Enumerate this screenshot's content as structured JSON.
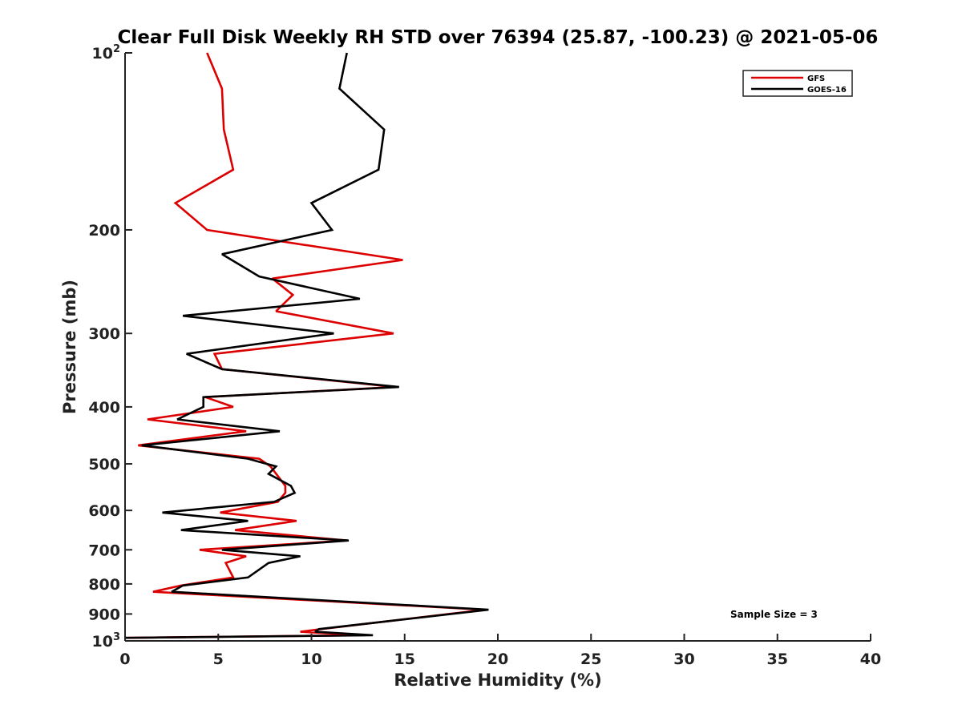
{
  "chart_data": {
    "type": "line",
    "title": "Clear Full Disk Weekly RH STD over 76394 (25.87, -100.23) @ 2021-05-06",
    "xlabel": "Relative Humidity (%)",
    "ylabel": "Pressure (mb)",
    "xlim": [
      0,
      40
    ],
    "ylim": [
      100,
      1000
    ],
    "y_scale": "log",
    "y_reversed": true,
    "x_ticks": [
      0,
      5,
      10,
      15,
      20,
      25,
      30,
      35,
      40
    ],
    "y_ticks": [
      {
        "value": 100,
        "label": "10",
        "sup": "2"
      },
      {
        "value": 200,
        "label": "200",
        "sup": ""
      },
      {
        "value": 300,
        "label": "300",
        "sup": ""
      },
      {
        "value": 400,
        "label": "400",
        "sup": ""
      },
      {
        "value": 500,
        "label": "500",
        "sup": ""
      },
      {
        "value": 600,
        "label": "600",
        "sup": ""
      },
      {
        "value": 700,
        "label": "700",
        "sup": ""
      },
      {
        "value": 800,
        "label": "800",
        "sup": ""
      },
      {
        "value": 900,
        "label": "900",
        "sup": ""
      },
      {
        "value": 1000,
        "label": "10",
        "sup": "3"
      }
    ],
    "grid": false,
    "legend_position": "top-right",
    "annotation": "Sample Size = 3",
    "series": [
      {
        "name": "GFS",
        "color": "#dd0000",
        "points": [
          [
            4.4,
            100
          ],
          [
            5.2,
            115
          ],
          [
            5.3,
            135
          ],
          [
            5.8,
            158
          ],
          [
            2.7,
            180
          ],
          [
            4.4,
            200
          ],
          [
            14.9,
            225
          ],
          [
            7.9,
            242
          ],
          [
            9.0,
            258
          ],
          [
            8.1,
            275
          ],
          [
            14.4,
            300
          ],
          [
            4.8,
            325
          ],
          [
            5.2,
            345
          ],
          [
            14.5,
            370
          ],
          [
            4.3,
            385
          ],
          [
            5.8,
            400
          ],
          [
            1.2,
            420
          ],
          [
            6.5,
            440
          ],
          [
            0.7,
            465
          ],
          [
            7.2,
            490
          ],
          [
            7.8,
            505
          ],
          [
            8.6,
            545
          ],
          [
            8.6,
            560
          ],
          [
            8.2,
            580
          ],
          [
            5.1,
            605
          ],
          [
            9.2,
            625
          ],
          [
            5.9,
            648
          ],
          [
            11.9,
            675
          ],
          [
            4.0,
            700
          ],
          [
            6.5,
            718
          ],
          [
            5.4,
            737
          ],
          [
            5.8,
            780
          ],
          [
            3.0,
            805
          ],
          [
            1.5,
            825
          ],
          [
            19.3,
            885
          ],
          [
            10.5,
            955
          ],
          [
            9.4,
            965
          ],
          [
            12.8,
            978
          ],
          [
            0.0,
            988
          ]
        ]
      },
      {
        "name": "GOES-16",
        "color": "#000000",
        "points": [
          [
            11.9,
            100
          ],
          [
            11.5,
            115
          ],
          [
            13.9,
            135
          ],
          [
            13.6,
            158
          ],
          [
            10.0,
            180
          ],
          [
            11.1,
            200
          ],
          [
            5.2,
            220
          ],
          [
            7.2,
            240
          ],
          [
            12.6,
            262
          ],
          [
            3.1,
            280
          ],
          [
            11.2,
            300
          ],
          [
            3.3,
            325
          ],
          [
            5.2,
            345
          ],
          [
            14.7,
            370
          ],
          [
            4.2,
            385
          ],
          [
            4.2,
            400
          ],
          [
            2.8,
            420
          ],
          [
            8.3,
            440
          ],
          [
            0.9,
            465
          ],
          [
            6.6,
            490
          ],
          [
            8.1,
            505
          ],
          [
            7.7,
            520
          ],
          [
            8.9,
            545
          ],
          [
            9.1,
            560
          ],
          [
            8.0,
            580
          ],
          [
            2.0,
            605
          ],
          [
            6.6,
            625
          ],
          [
            3.0,
            648
          ],
          [
            12.0,
            675
          ],
          [
            5.2,
            700
          ],
          [
            9.4,
            718
          ],
          [
            7.7,
            737
          ],
          [
            6.6,
            780
          ],
          [
            3.1,
            805
          ],
          [
            2.5,
            825
          ],
          [
            19.5,
            885
          ],
          [
            10.4,
            955
          ],
          [
            10.2,
            965
          ],
          [
            13.3,
            978
          ],
          [
            0.0,
            988
          ]
        ]
      }
    ]
  }
}
